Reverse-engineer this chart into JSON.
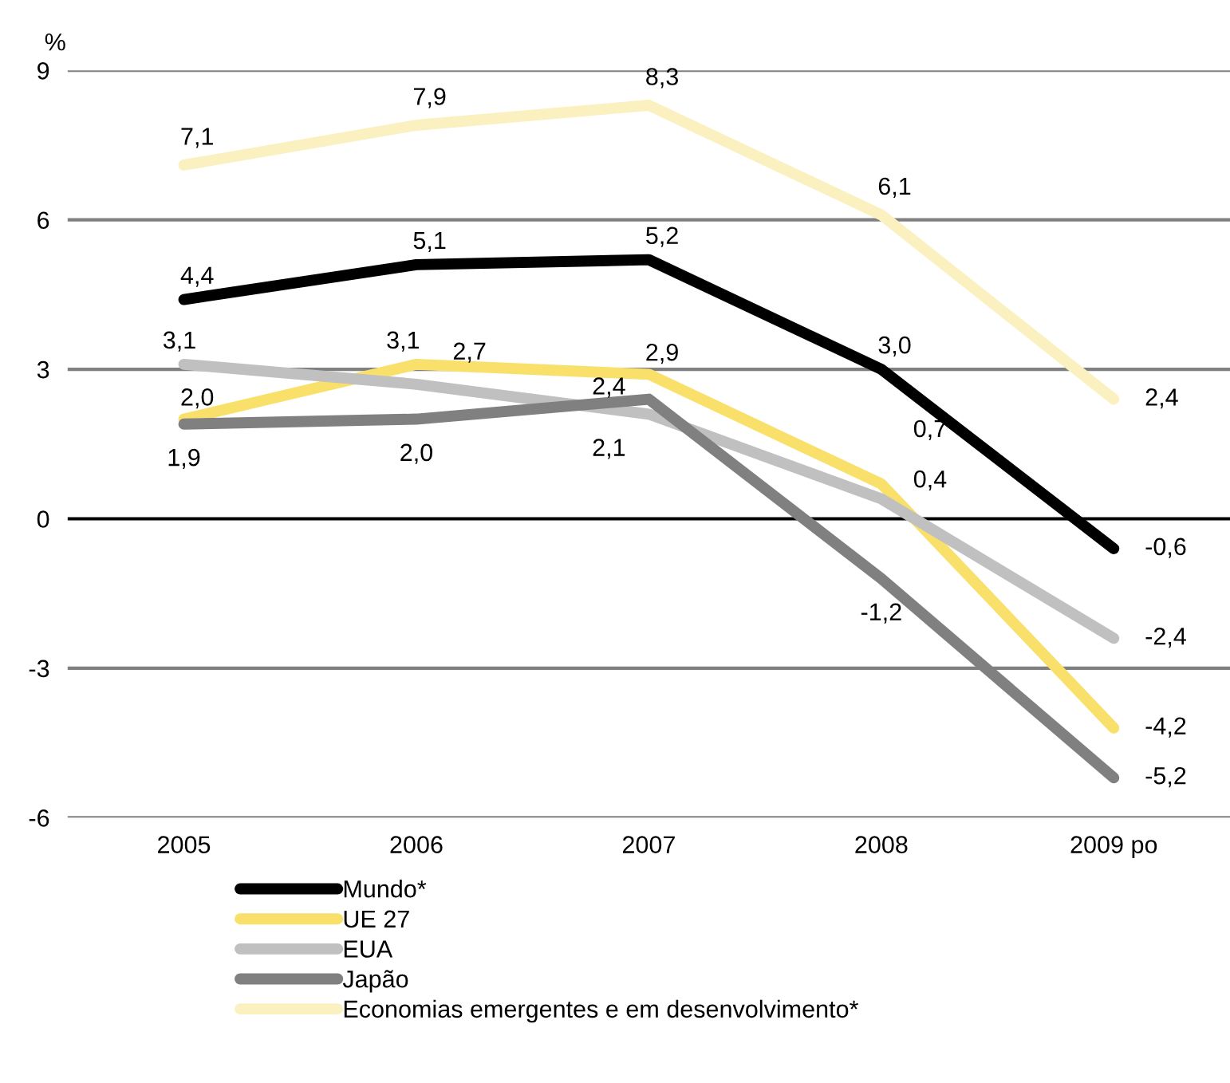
{
  "chart_data": {
    "type": "line",
    "ylabel": "%",
    "categories": [
      "2005",
      "2006",
      "2007",
      "2008",
      "2009 po"
    ],
    "series": [
      {
        "name": "Mundo*",
        "color": "#000000",
        "values": [
          4.4,
          5.1,
          5.2,
          3.0,
          -0.6
        ],
        "value_labels": [
          "4,4",
          "5,1",
          "5,2",
          "3,0",
          "-0,6"
        ]
      },
      {
        "name": "UE 27",
        "color": "#f9e06b",
        "values": [
          2.0,
          3.1,
          2.9,
          0.7,
          -4.2
        ],
        "value_labels": [
          "2,0",
          "3,1",
          "2,9",
          "0,7",
          "-4,2"
        ]
      },
      {
        "name": "EUA",
        "color": "#c0c0c0",
        "values": [
          3.1,
          2.7,
          2.1,
          0.4,
          -2.4
        ],
        "value_labels": [
          "3,1",
          "2,7",
          "2,1",
          "0,4",
          "-2,4"
        ]
      },
      {
        "name": "Japão",
        "color": "#808080",
        "values": [
          1.9,
          2.0,
          2.4,
          -1.2,
          -5.2
        ],
        "value_labels": [
          "1,9",
          "2,0",
          "2,4",
          "-1,2",
          "-5,2"
        ]
      },
      {
        "name": "Economias emergentes e em desenvolvimento*",
        "color": "#fbf1c0",
        "values": [
          7.1,
          7.9,
          8.3,
          6.1,
          2.4
        ],
        "value_labels": [
          "7,1",
          "7,9",
          "8,3",
          "6,1",
          "2,4"
        ]
      }
    ],
    "ylim": [
      -6,
      9
    ],
    "yticks": [
      -6,
      -3,
      0,
      3,
      6,
      9
    ],
    "grid": "y",
    "legend": "bottom",
    "marker": "none",
    "line_style": "solid"
  }
}
